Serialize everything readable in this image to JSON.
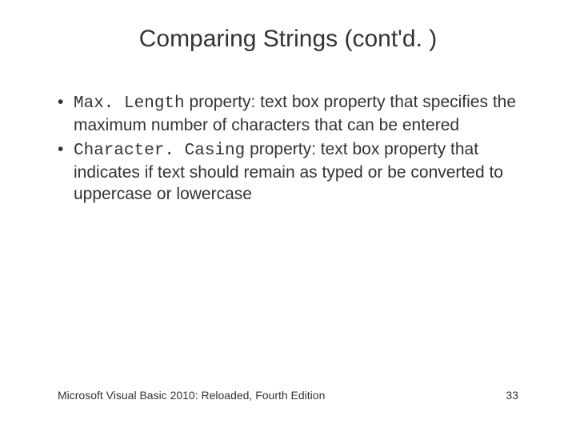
{
  "title": "Comparing Strings (cont'd. )",
  "bullets": [
    {
      "code": "Max. Length",
      "text": " property: text box property that specifies the maximum number of characters that can be entered"
    },
    {
      "code": "Character. Casing",
      "text": " property: text box property that indicates if text should remain as typed or be converted to uppercase or lowercase"
    }
  ],
  "footer_text": "Microsoft Visual Basic 2010: Reloaded, Fourth Edition",
  "page_number": "33",
  "colors": {
    "background": "#ffffff",
    "text": "#333333"
  },
  "fonts": {
    "title_size": 30,
    "body_size": 21,
    "footer_size": 14
  }
}
